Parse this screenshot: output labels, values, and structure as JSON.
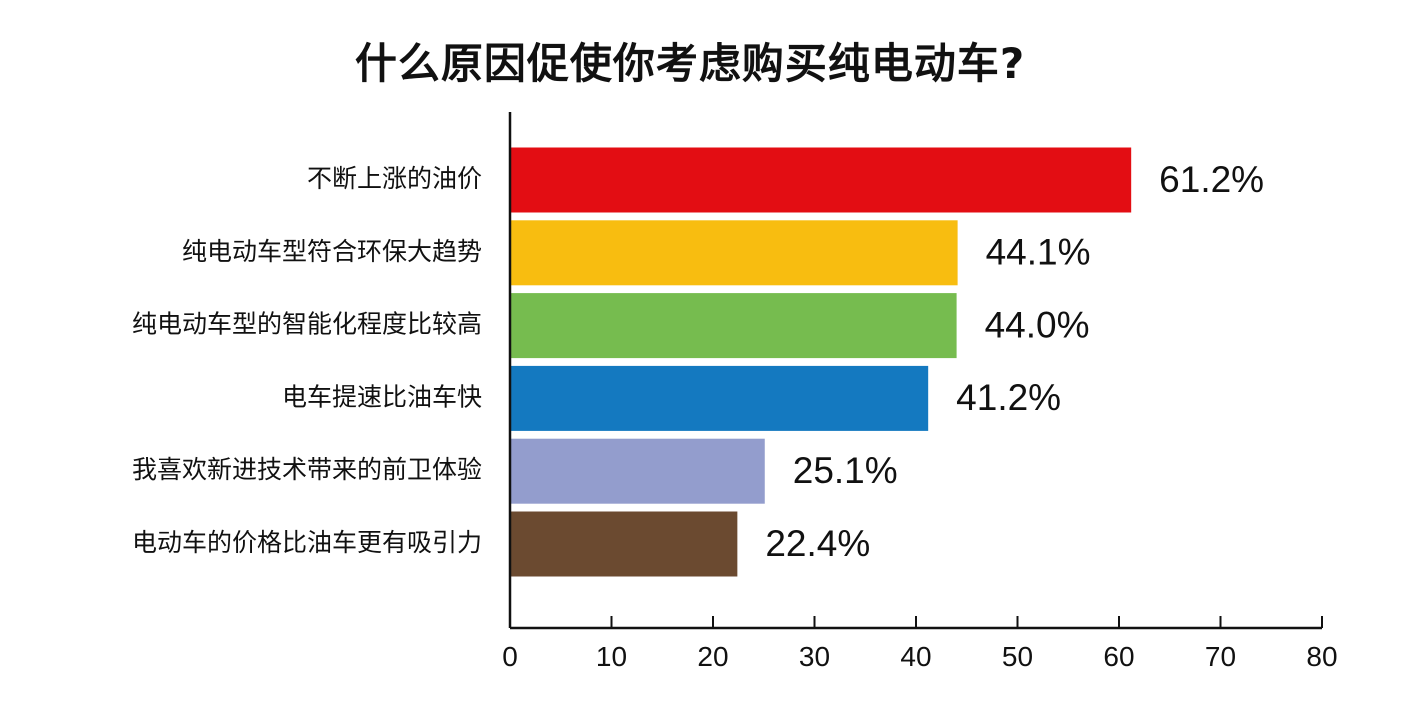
{
  "chart_data": {
    "type": "bar",
    "orientation": "horizontal",
    "title": "什么原因促使你考虑购买纯电动车?",
    "categories": [
      "不断上涨的油价",
      "纯电动车型符合环保大趋势",
      "纯电动车型的智能化程度比较高",
      "电车提速比油车快",
      "我喜欢新进技术带来的前卫体验",
      "电动车的价格比油车更有吸引力"
    ],
    "values": [
      61.2,
      44.1,
      44.0,
      41.2,
      25.1,
      22.4
    ],
    "data_labels": [
      "61.2%",
      "44.1%",
      "44.0%",
      "41.2%",
      "25.1%",
      "22.4%"
    ],
    "colors": [
      "#e30d13",
      "#f8bd10",
      "#76bc4f",
      "#1479c0",
      "#939dcd",
      "#6b4a30"
    ],
    "xlim": [
      0,
      80
    ],
    "xticks": [
      0,
      10,
      20,
      30,
      40,
      50,
      60,
      70,
      80
    ],
    "grid": false,
    "legend": "none"
  }
}
